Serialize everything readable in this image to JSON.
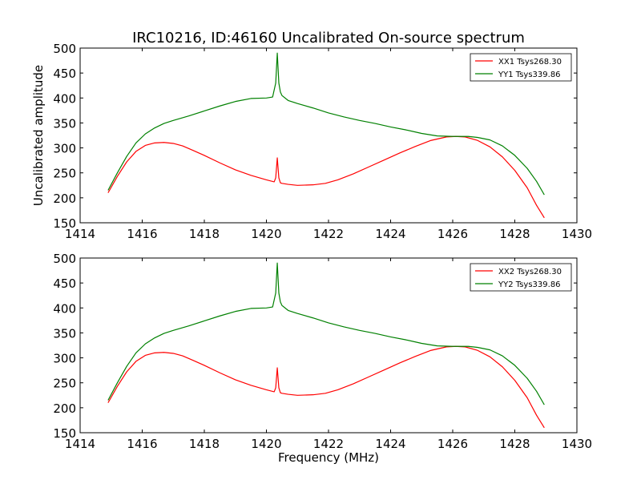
{
  "figure": {
    "title": "IRC10216, ID:46160 Uncalibrated On-source spectrum",
    "ylabel": "Uncalibrated amplitude",
    "xlabel": "Frequency (MHz)"
  },
  "colors": {
    "xx": "#ff0000",
    "yy": "#008000"
  },
  "chart_data": [
    {
      "type": "line",
      "xlim": [
        1414,
        1430
      ],
      "ylim": [
        150,
        500
      ],
      "xticks": [
        1414,
        1416,
        1418,
        1420,
        1422,
        1424,
        1426,
        1428,
        1430
      ],
      "yticks": [
        150,
        200,
        250,
        300,
        350,
        400,
        450,
        500
      ],
      "legend_position": "top-right",
      "series": [
        {
          "name": "XX1 Tsys268.30",
          "color": "#ff0000",
          "x": [
            1414.9,
            1415.2,
            1415.5,
            1415.8,
            1416.1,
            1416.4,
            1416.7,
            1417.0,
            1417.3,
            1417.6,
            1418.0,
            1418.5,
            1419.0,
            1419.5,
            1420.0,
            1420.25,
            1420.3,
            1420.35,
            1420.4,
            1420.45,
            1420.5,
            1420.7,
            1421.0,
            1421.5,
            1421.9,
            1422.3,
            1422.8,
            1423.3,
            1423.8,
            1424.3,
            1424.8,
            1425.3,
            1425.8,
            1426.1,
            1426.4,
            1426.8,
            1427.2,
            1427.6,
            1428.0,
            1428.4,
            1428.7,
            1428.95
          ],
          "y": [
            210,
            243,
            272,
            293,
            305,
            310,
            311,
            309,
            304,
            296,
            285,
            270,
            256,
            245,
            236,
            232,
            240,
            280,
            240,
            230,
            229,
            227,
            225,
            226,
            229,
            236,
            248,
            262,
            276,
            290,
            303,
            315,
            322,
            323,
            322,
            315,
            302,
            282,
            255,
            220,
            185,
            160
          ]
        },
        {
          "name": "YY1 Tsys339.86",
          "color": "#008000",
          "x": [
            1414.9,
            1415.2,
            1415.5,
            1415.8,
            1416.1,
            1416.4,
            1416.7,
            1417.0,
            1417.5,
            1418.0,
            1418.5,
            1419.0,
            1419.5,
            1420.0,
            1420.2,
            1420.3,
            1420.35,
            1420.4,
            1420.45,
            1420.5,
            1420.7,
            1421.0,
            1421.5,
            1422.0,
            1422.5,
            1423.0,
            1423.5,
            1424.0,
            1424.5,
            1425.0,
            1425.5,
            1426.0,
            1426.5,
            1426.8,
            1427.2,
            1427.6,
            1428.0,
            1428.4,
            1428.7,
            1428.95
          ],
          "y": [
            215,
            250,
            283,
            310,
            328,
            340,
            349,
            355,
            364,
            374,
            384,
            393,
            399,
            400,
            402,
            430,
            490,
            430,
            412,
            405,
            395,
            389,
            380,
            370,
            362,
            355,
            349,
            342,
            336,
            329,
            324,
            323,
            323,
            321,
            316,
            304,
            285,
            259,
            233,
            206
          ]
        }
      ]
    },
    {
      "type": "line",
      "xlim": [
        1414,
        1430
      ],
      "ylim": [
        150,
        500
      ],
      "xticks": [
        1414,
        1416,
        1418,
        1420,
        1422,
        1424,
        1426,
        1428,
        1430
      ],
      "yticks": [
        150,
        200,
        250,
        300,
        350,
        400,
        450,
        500
      ],
      "xlabel": "Frequency (MHz)",
      "legend_position": "top-right",
      "series": [
        {
          "name": "XX2 Tsys268.30",
          "color": "#ff0000",
          "x": [
            1414.9,
            1415.2,
            1415.5,
            1415.8,
            1416.1,
            1416.4,
            1416.7,
            1417.0,
            1417.3,
            1417.6,
            1418.0,
            1418.5,
            1419.0,
            1419.5,
            1420.0,
            1420.25,
            1420.3,
            1420.35,
            1420.4,
            1420.45,
            1420.5,
            1420.7,
            1421.0,
            1421.5,
            1421.9,
            1422.3,
            1422.8,
            1423.3,
            1423.8,
            1424.3,
            1424.8,
            1425.3,
            1425.8,
            1426.1,
            1426.4,
            1426.8,
            1427.2,
            1427.6,
            1428.0,
            1428.4,
            1428.7,
            1428.95
          ],
          "y": [
            210,
            243,
            272,
            293,
            305,
            310,
            311,
            309,
            304,
            296,
            285,
            270,
            256,
            245,
            236,
            232,
            240,
            280,
            240,
            230,
            229,
            227,
            225,
            226,
            229,
            236,
            248,
            262,
            276,
            290,
            303,
            315,
            322,
            323,
            322,
            315,
            302,
            282,
            255,
            220,
            185,
            160
          ]
        },
        {
          "name": "YY2 Tsys339.86",
          "color": "#008000",
          "x": [
            1414.9,
            1415.2,
            1415.5,
            1415.8,
            1416.1,
            1416.4,
            1416.7,
            1417.0,
            1417.5,
            1418.0,
            1418.5,
            1419.0,
            1419.5,
            1420.0,
            1420.2,
            1420.3,
            1420.35,
            1420.4,
            1420.45,
            1420.5,
            1420.7,
            1421.0,
            1421.5,
            1422.0,
            1422.5,
            1423.0,
            1423.5,
            1424.0,
            1424.5,
            1425.0,
            1425.5,
            1426.0,
            1426.5,
            1426.8,
            1427.2,
            1427.6,
            1428.0,
            1428.4,
            1428.7,
            1428.95
          ],
          "y": [
            215,
            250,
            283,
            310,
            328,
            340,
            349,
            355,
            364,
            374,
            384,
            393,
            399,
            400,
            402,
            430,
            490,
            430,
            412,
            405,
            395,
            389,
            380,
            370,
            362,
            355,
            349,
            342,
            336,
            329,
            324,
            323,
            323,
            321,
            316,
            304,
            285,
            259,
            233,
            206
          ]
        }
      ]
    }
  ]
}
